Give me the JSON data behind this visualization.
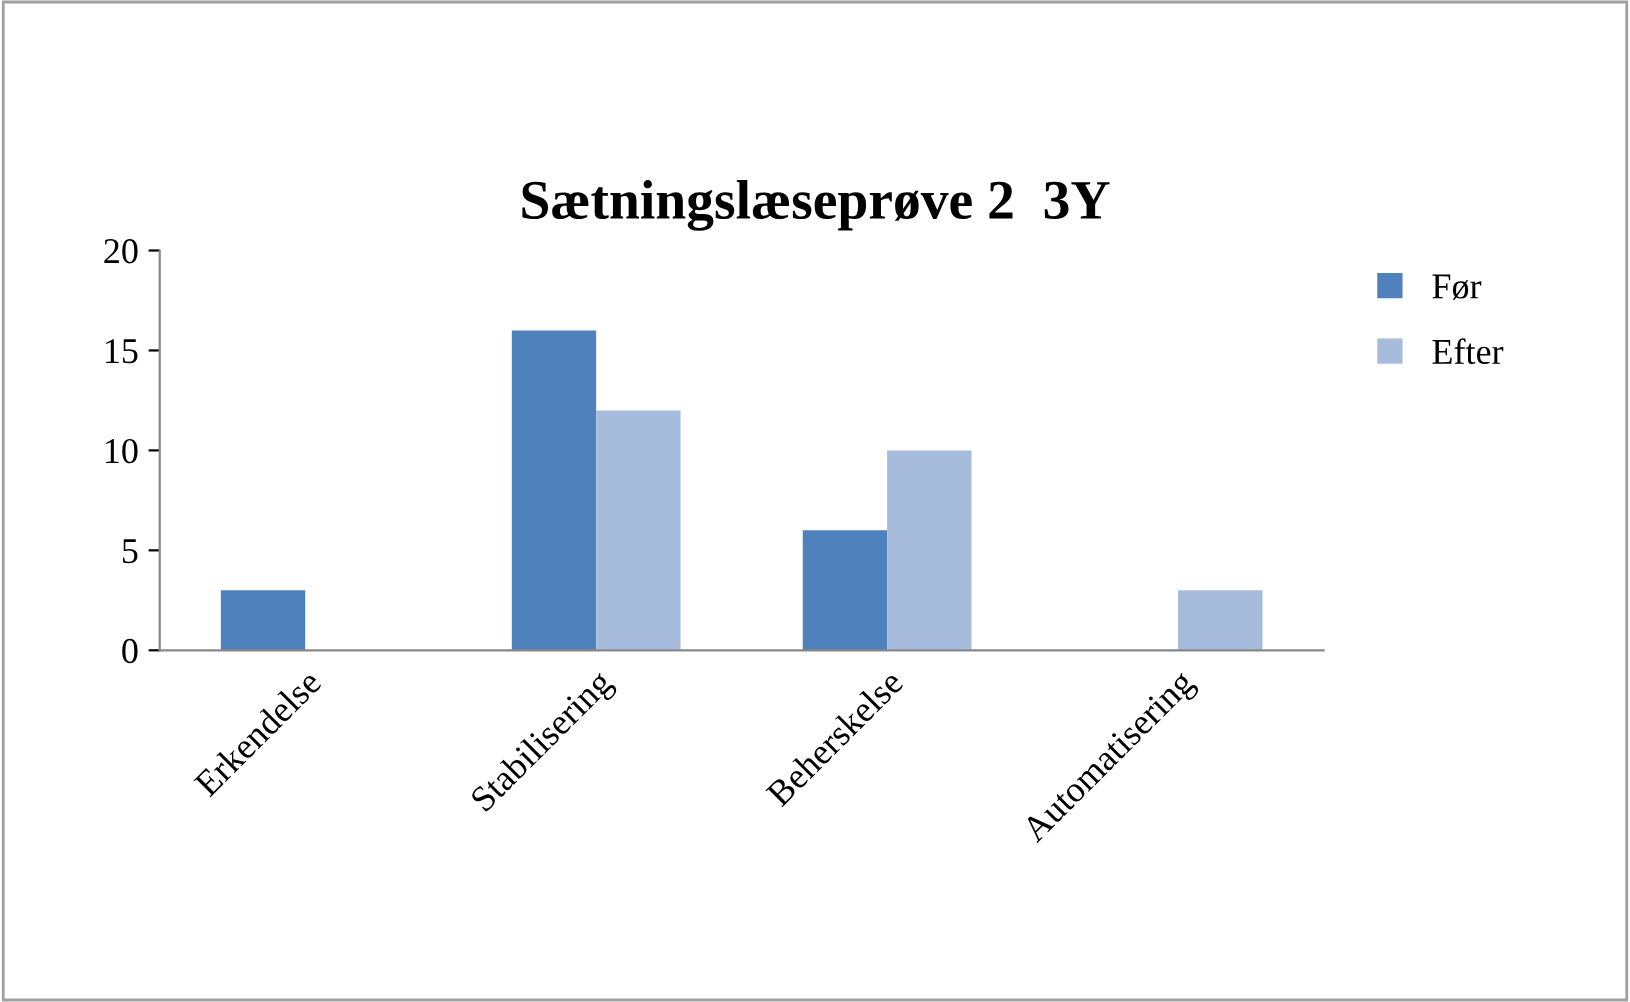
{
  "chart_data": {
    "type": "bar",
    "title": "Sætningslæseprøve 2  3Y",
    "categories": [
      "Erkendelse",
      "Stabilisering",
      "Beherskelse",
      "Automatisering"
    ],
    "series": [
      {
        "name": "Før",
        "color": "#4f81bd",
        "values": [
          3,
          16,
          6,
          0
        ]
      },
      {
        "name": "Efter",
        "color": "#a7bcdd",
        "values": [
          0,
          12,
          10,
          3
        ]
      }
    ],
    "ylim": [
      0,
      20
    ],
    "yticks": [
      0,
      5,
      10,
      15,
      20
    ],
    "grid": false,
    "legend": "right"
  }
}
